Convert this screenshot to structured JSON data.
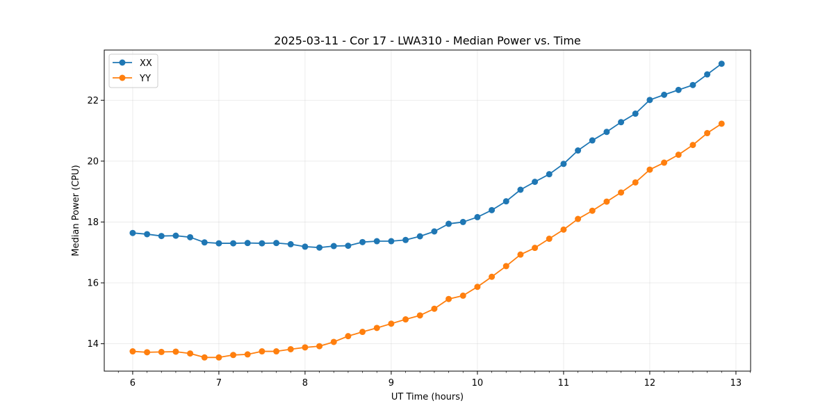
{
  "chart_data": {
    "type": "line",
    "title": "2025-03-11 - Cor 17 - LWA310 - Median Power vs. Time",
    "xlabel": "UT Time (hours)",
    "ylabel": "Median Power (CPU)",
    "xlim": [
      5.67,
      13.17
    ],
    "ylim": [
      13.1,
      23.65
    ],
    "xticks": [
      6,
      7,
      8,
      9,
      10,
      11,
      12,
      13
    ],
    "xtick_labels": [
      "6",
      "7",
      "8",
      "9",
      "10",
      "11",
      "12",
      "13"
    ],
    "yticks": [
      14,
      16,
      18,
      20,
      22
    ],
    "ytick_labels": [
      "14",
      "16",
      "18",
      "20",
      "22"
    ],
    "grid": true,
    "legend_position": "top-left",
    "x": [
      6.0,
      6.1667,
      6.3333,
      6.5,
      6.6667,
      6.8333,
      7.0,
      7.1667,
      7.3333,
      7.5,
      7.6667,
      7.8333,
      8.0,
      8.1667,
      8.3333,
      8.5,
      8.6667,
      8.8333,
      9.0,
      9.1667,
      9.3333,
      9.5,
      9.6667,
      9.8333,
      10.0,
      10.1667,
      10.3333,
      10.5,
      10.6667,
      10.8333,
      11.0,
      11.1667,
      11.3333,
      11.5,
      11.6667,
      11.8333,
      12.0,
      12.1667,
      12.3333,
      12.5,
      12.6667,
      12.8333
    ],
    "series": [
      {
        "name": "XX",
        "color": "#1f77b4",
        "values": [
          17.64,
          17.6,
          17.54,
          17.55,
          17.5,
          17.33,
          17.3,
          17.3,
          17.31,
          17.3,
          17.31,
          17.27,
          17.19,
          17.16,
          17.21,
          17.22,
          17.34,
          17.37,
          17.37,
          17.41,
          17.53,
          17.69,
          17.94,
          18.0,
          18.16,
          18.39,
          18.68,
          19.06,
          19.32,
          19.57,
          19.91,
          20.35,
          20.68,
          20.96,
          21.28,
          21.56,
          22.01,
          22.18,
          22.34,
          22.5,
          22.85,
          23.2
        ]
      },
      {
        "name": "YY",
        "color": "#ff7f0e",
        "values": [
          13.75,
          13.72,
          13.73,
          13.74,
          13.68,
          13.55,
          13.55,
          13.63,
          13.65,
          13.75,
          13.75,
          13.82,
          13.88,
          13.92,
          14.06,
          14.25,
          14.39,
          14.52,
          14.66,
          14.8,
          14.93,
          15.15,
          15.47,
          15.58,
          15.87,
          16.2,
          16.55,
          16.93,
          17.15,
          17.45,
          17.75,
          18.1,
          18.37,
          18.67,
          18.97,
          19.3,
          19.72,
          19.95,
          20.21,
          20.53,
          20.92,
          21.23
        ]
      }
    ]
  }
}
